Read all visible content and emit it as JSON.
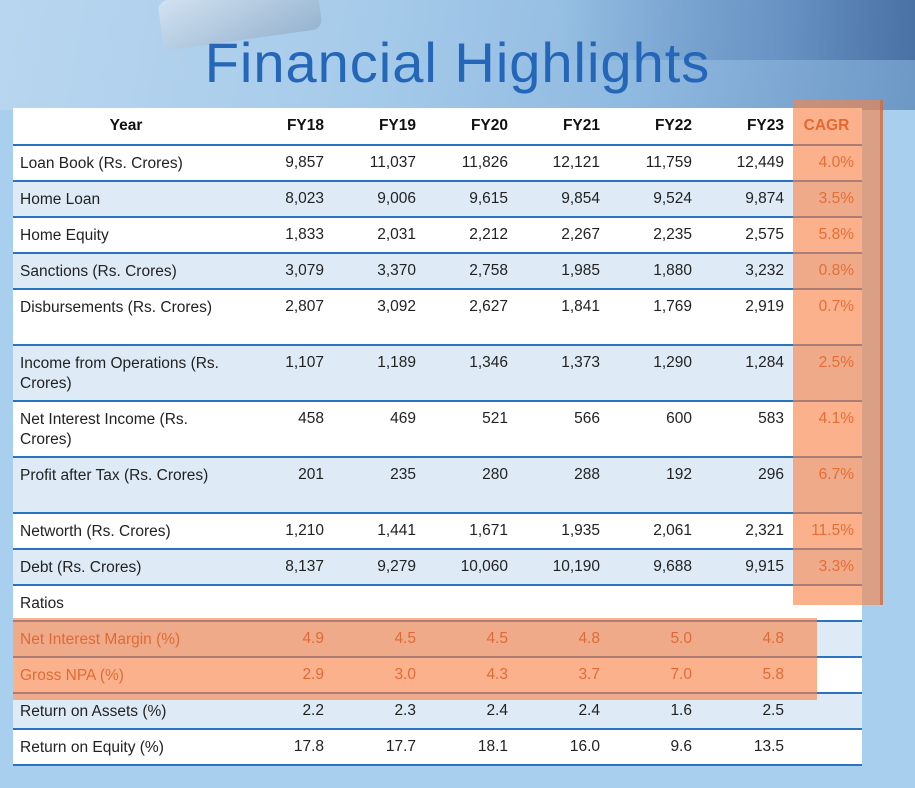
{
  "title": "Financial Highlights",
  "columns": [
    "Year",
    "FY18",
    "FY19",
    "FY20",
    "FY21",
    "FY22",
    "FY23",
    "CAGR"
  ],
  "rows": [
    {
      "label": "Loan Book (Rs. Crores)",
      "values": [
        "9,857",
        "11,037",
        "11,826",
        "12,121",
        "11,759",
        "12,449"
      ],
      "cagr": "4.0%"
    },
    {
      "label": "Home Loan",
      "values": [
        "8,023",
        "9,006",
        "9,615",
        "9,854",
        "9,524",
        "9,874"
      ],
      "cagr": "3.5%"
    },
    {
      "label": "Home Equity",
      "values": [
        "1,833",
        "2,031",
        "2,212",
        "2,267",
        "2,235",
        "2,575"
      ],
      "cagr": "5.8%"
    },
    {
      "label": "Sanctions (Rs. Crores)",
      "values": [
        "3,079",
        "3,370",
        "2,758",
        "1,985",
        "1,880",
        "3,232"
      ],
      "cagr": "0.8%"
    },
    {
      "label": "Disbursements (Rs. Crores)",
      "values": [
        "2,807",
        "3,092",
        "2,627",
        "1,841",
        "1,769",
        "2,919"
      ],
      "cagr": "0.7%"
    },
    {
      "label": "Income from Operations (Rs. Crores)",
      "values": [
        "1,107",
        "1,189",
        "1,346",
        "1,373",
        "1,290",
        "1,284"
      ],
      "cagr": "2.5%"
    },
    {
      "label": "Net Interest Income (Rs. Crores)",
      "values": [
        "458",
        "469",
        "521",
        "566",
        "600",
        "583"
      ],
      "cagr": "4.1%"
    },
    {
      "label": "Profit after Tax (Rs. Crores)",
      "values": [
        "201",
        "235",
        "280",
        "288",
        "192",
        "296"
      ],
      "cagr": "6.7%"
    },
    {
      "label": "Networth (Rs. Crores)",
      "values": [
        "1,210",
        "1,441",
        "1,671",
        "1,935",
        "2,061",
        "2,321"
      ],
      "cagr": "11.5%"
    },
    {
      "label": "Debt (Rs. Crores)",
      "values": [
        "8,137",
        "9,279",
        "10,060",
        "10,190",
        "9,688",
        "9,915"
      ],
      "cagr": "3.3%"
    }
  ],
  "ratios_label": "Ratios",
  "ratio_rows": [
    {
      "label": "Net Interest Margin (%)",
      "values": [
        "4.9",
        "4.5",
        "4.5",
        "4.8",
        "5.0",
        "4.8"
      ]
    },
    {
      "label": "Gross NPA (%)",
      "values": [
        "2.9",
        "3.0",
        "4.3",
        "3.7",
        "7.0",
        "5.8"
      ]
    },
    {
      "label": "Return on Assets (%)",
      "values": [
        "2.2",
        "2.3",
        "2.4",
        "2.4",
        "1.6",
        "2.5"
      ]
    },
    {
      "label": "Return on Equity (%)",
      "values": [
        "17.8",
        "17.7",
        "18.1",
        "16.0",
        "9.6",
        "13.5"
      ]
    }
  ],
  "colors": {
    "title": "#2466b8",
    "rule": "#2a74c4",
    "highlight": "#f8824a",
    "cagr_header": "#c03d12"
  }
}
